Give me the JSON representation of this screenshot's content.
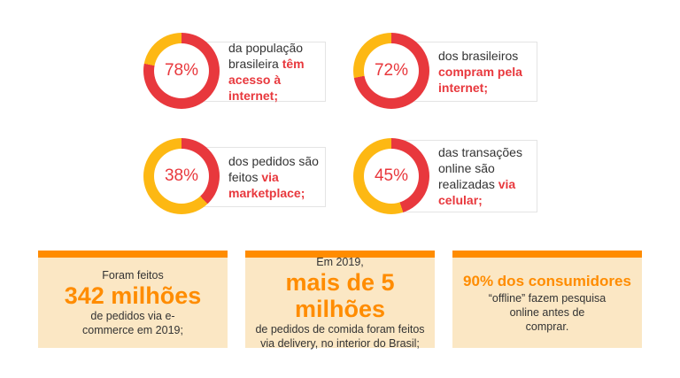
{
  "colors": {
    "primary": "#e8383d",
    "secondary": "#fdb813",
    "accent": "#ff8c00",
    "box_bg": "#fbe7c4"
  },
  "stats": [
    {
      "percent": 78,
      "label": "78%",
      "text": "da população brasileira ",
      "highlight": "têm acesso à internet;"
    },
    {
      "percent": 72,
      "label": "72%",
      "text": "dos brasileiros ",
      "highlight": "compram pela internet;"
    },
    {
      "percent": 38,
      "label": "38%",
      "text": "dos pedidos são feitos ",
      "highlight": "via marketplace;"
    },
    {
      "percent": 45,
      "label": "45%",
      "text": "das transações online são realizadas ",
      "highlight": "via celular;"
    }
  ],
  "boxes": [
    {
      "top": "Foram feitos",
      "big": "342 milhões",
      "bottom": "de pedidos via e-commerce em 2019;"
    },
    {
      "top": "Em 2019,",
      "big": "mais de 5 milhões",
      "bottom": "de pedidos de comida foram feitos via delivery, no interior do Brasil;"
    },
    {
      "big": "90% dos consumidores",
      "bottom": "“offline” fazem pesquisa online antes de comprar."
    }
  ]
}
